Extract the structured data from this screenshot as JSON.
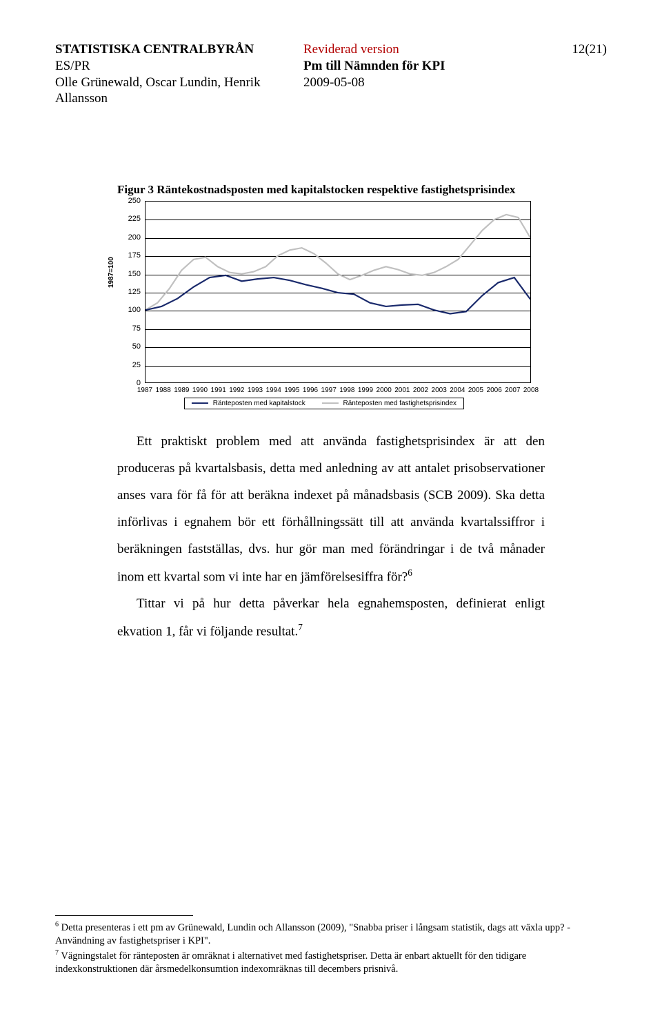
{
  "header": {
    "org": "STATISTISKA CENTRALBYRÅN",
    "dept": "ES/PR",
    "authors": "Olle Grünewald, Oscar Lundin, Henrik Allansson",
    "revised": "Reviderad version",
    "pm": "Pm till Nämnden för KPI",
    "date": "2009-05-08",
    "page": "12(21)"
  },
  "figure": {
    "caption": "Figur 3 Räntekostnadsposten med kapitalstocken respektive fastighetsprisindex",
    "type": "line",
    "ylim": [
      0,
      250
    ],
    "ytick_step": 25,
    "yticks": [
      0,
      25,
      50,
      75,
      100,
      125,
      150,
      175,
      200,
      225,
      250
    ],
    "ylabel": "1987=100",
    "xyears": [
      1987,
      1988,
      1989,
      1990,
      1991,
      1992,
      1993,
      1994,
      1995,
      1996,
      1997,
      1998,
      1999,
      2000,
      2001,
      2002,
      2003,
      2004,
      2005,
      2006,
      2007,
      2008
    ],
    "background_color": "#ffffff",
    "grid_color": "#000000",
    "series": [
      {
        "name": "Ränteposten med kapitalstock",
        "color": "#1a2a6c",
        "width": 2.2,
        "values": [
          100,
          105,
          116,
          132,
          145,
          148,
          140,
          143,
          145,
          141,
          135,
          130,
          124,
          122,
          110,
          105,
          107,
          108,
          100,
          95,
          98,
          120,
          138,
          145,
          115
        ]
      },
      {
        "name": "Ränteposten med fastighetsprisindex",
        "color": "#c0c0c0",
        "width": 2.2,
        "values": [
          100,
          110,
          130,
          155,
          170,
          173,
          160,
          152,
          150,
          153,
          160,
          175,
          183,
          186,
          178,
          165,
          150,
          142,
          148,
          155,
          160,
          156,
          150,
          148,
          152,
          160,
          170,
          190,
          210,
          225,
          232,
          228,
          200
        ]
      }
    ],
    "legend": [
      "Ränteposten med kapitalstock",
      "Ränteposten med fastighetsprisindex"
    ]
  },
  "body": {
    "p1": "Ett praktiskt problem med att använda fastighetsprisindex är att den produceras på kvartalsbasis, detta med anledning av att antalet prisobservationer anses vara för få för att beräkna indexet på månadsbasis (SCB 2009). Ska detta införlivas i egnahem bör ett förhållningssätt till att använda kvartalssiffror i beräkningen fastställas, dvs. hur gör man med förändringar i de två månader inom ett kvartal som vi inte har en jämförelsesiffra för?",
    "p1_sup": "6",
    "p2": "Tittar vi på hur detta påverkar hela egnahemsposten, definierat enligt ekvation 1, får vi följande resultat.",
    "p2_sup": "7"
  },
  "footnotes": {
    "f6_sup": "6",
    "f6": " Detta presenteras i ett pm av Grünewald, Lundin och Allansson (2009), \"Snabba priser i långsam statistik, dags att växla upp? - Användning av fastighetspriser i KPI\".",
    "f7_sup": "7",
    "f7": " Vägningstalet för ränteposten är omräknat i alternativet med fastighetspriser. Detta är enbart aktuellt för den tidigare indexkonstruktionen där årsmedelkonsumtion indexomräknas till decembers prisnivå."
  }
}
